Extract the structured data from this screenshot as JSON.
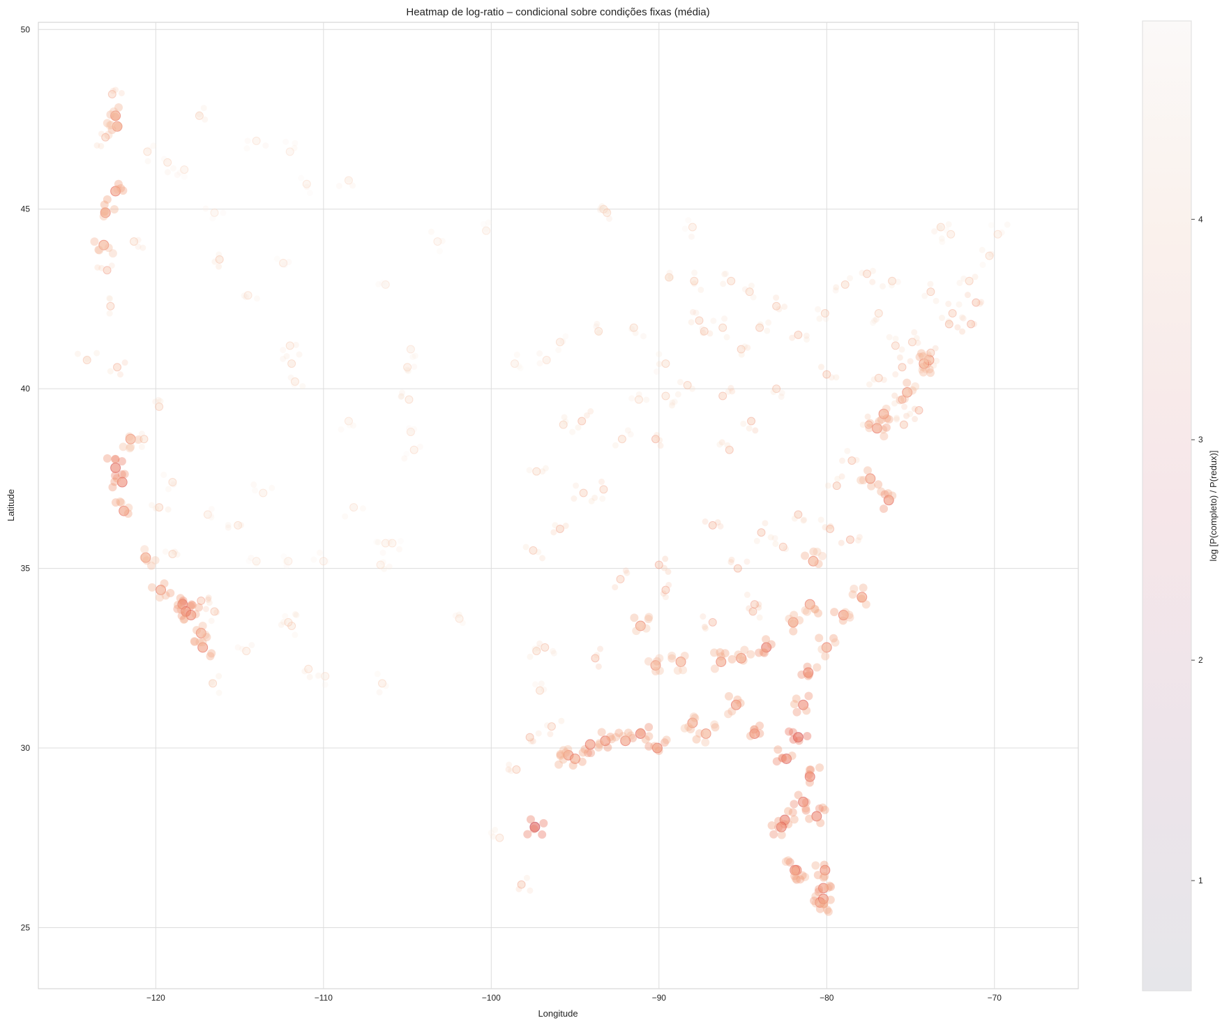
{
  "chart_data": {
    "type": "scatter",
    "title": "Heatmap de log-ratio – condicional sobre condições fixas (média)",
    "xlabel": "Longitude",
    "ylabel": "Latitude",
    "xlim": [
      -127.0,
      -65.0
    ],
    "ylim": [
      23.3,
      50.2
    ],
    "xticks": [
      -120,
      -110,
      -100,
      -90,
      -80,
      -70
    ],
    "xtick_labels": [
      "−120",
      "−110",
      "−100",
      "−90",
      "−80",
      "−70"
    ],
    "yticks": [
      25,
      30,
      35,
      40,
      45,
      50
    ],
    "ytick_labels": [
      "25",
      "30",
      "35",
      "40",
      "45",
      "50"
    ],
    "grid": true,
    "colorbar": {
      "label": "log [P(completo) / P(redux)]",
      "range": [
        0.5,
        4.9
      ],
      "ticks": [
        1,
        2,
        3,
        4
      ],
      "tick_labels": [
        "1",
        "2",
        "3",
        "4"
      ],
      "colormap": [
        "#2b2d42",
        "#6b2a55",
        "#b2304f",
        "#e4574a",
        "#f2a27f",
        "#f7d9c4",
        "#faf3ee"
      ]
    },
    "series": [
      {
        "description_points": "[lon, lat, log-ratio value]",
        "points": [
          [
            -122.4,
            47.6,
            3.4
          ],
          [
            -122.3,
            47.3,
            3.5
          ],
          [
            -122.6,
            48.2,
            3.8
          ],
          [
            -122.4,
            45.5,
            3.3
          ],
          [
            -123.0,
            44.9,
            3.4
          ],
          [
            -123.1,
            44.0,
            3.5
          ],
          [
            -122.9,
            43.3,
            3.6
          ],
          [
            -122.7,
            42.3,
            3.9
          ],
          [
            -122.3,
            40.6,
            3.8
          ],
          [
            -122.4,
            37.8,
            3.0
          ],
          [
            -122.0,
            37.4,
            3.1
          ],
          [
            -121.9,
            36.6,
            3.3
          ],
          [
            -121.5,
            38.6,
            3.5
          ],
          [
            -120.6,
            35.3,
            3.5
          ],
          [
            -119.7,
            34.4,
            3.4
          ],
          [
            -118.4,
            34.0,
            3.1
          ],
          [
            -118.2,
            33.8,
            3.2
          ],
          [
            -117.9,
            33.7,
            3.2
          ],
          [
            -117.2,
            32.8,
            3.3
          ],
          [
            -117.3,
            33.2,
            3.4
          ],
          [
            -119.8,
            36.7,
            4.0
          ],
          [
            -119.0,
            35.4,
            4.1
          ],
          [
            -117.3,
            34.1,
            3.6
          ],
          [
            -116.5,
            33.8,
            3.9
          ],
          [
            -119.8,
            39.5,
            4.0
          ],
          [
            -115.1,
            36.2,
            4.3
          ],
          [
            -111.9,
            33.4,
            4.2
          ],
          [
            -110.9,
            32.2,
            4.3
          ],
          [
            -106.6,
            35.1,
            4.5
          ],
          [
            -111.9,
            40.7,
            4.2
          ],
          [
            -104.9,
            39.7,
            4.3
          ],
          [
            -104.8,
            38.8,
            4.4
          ],
          [
            -116.2,
            43.6,
            4.0
          ],
          [
            -117.4,
            47.6,
            4.2
          ],
          [
            -112.0,
            46.6,
            4.6
          ],
          [
            -108.5,
            45.8,
            4.5
          ],
          [
            -96.8,
            32.8,
            3.9
          ],
          [
            -97.3,
            32.7,
            4.0
          ],
          [
            -95.4,
            29.8,
            3.3
          ],
          [
            -95.0,
            29.7,
            3.4
          ],
          [
            -98.5,
            29.4,
            3.9
          ],
          [
            -97.7,
            30.3,
            3.7
          ],
          [
            -97.5,
            35.5,
            3.9
          ],
          [
            -95.9,
            36.1,
            3.7
          ],
          [
            -94.6,
            39.1,
            3.8
          ],
          [
            -90.2,
            38.6,
            3.6
          ],
          [
            -93.3,
            45.0,
            4.2
          ],
          [
            -93.1,
            44.9,
            4.2
          ],
          [
            -87.6,
            41.9,
            3.9
          ],
          [
            -87.9,
            43.0,
            4.0
          ],
          [
            -83.0,
            42.3,
            3.9
          ],
          [
            -83.0,
            40.0,
            3.9
          ],
          [
            -84.5,
            39.1,
            3.7
          ],
          [
            -86.2,
            39.8,
            3.8
          ],
          [
            -84.4,
            33.8,
            3.7
          ],
          [
            -86.8,
            33.5,
            3.6
          ],
          [
            -86.8,
            36.2,
            3.6
          ],
          [
            -85.8,
            38.3,
            3.8
          ],
          [
            -90.1,
            30.0,
            3.2
          ],
          [
            -91.1,
            30.4,
            3.1
          ],
          [
            -93.8,
            32.5,
            3.6
          ],
          [
            -90.2,
            32.3,
            3.5
          ],
          [
            -88.0,
            30.7,
            3.4
          ],
          [
            -87.2,
            30.4,
            3.5
          ],
          [
            -84.3,
            30.4,
            3.2
          ],
          [
            -81.7,
            30.3,
            2.8
          ],
          [
            -82.5,
            28.0,
            3.0
          ],
          [
            -82.7,
            27.8,
            3.1
          ],
          [
            -81.4,
            28.5,
            3.1
          ],
          [
            -80.2,
            26.1,
            3.2
          ],
          [
            -80.1,
            26.6,
            3.2
          ],
          [
            -81.8,
            26.6,
            3.3
          ],
          [
            -80.8,
            35.2,
            3.5
          ],
          [
            -78.6,
            35.8,
            3.6
          ],
          [
            -80.0,
            32.8,
            3.4
          ],
          [
            -81.0,
            34.0,
            3.4
          ],
          [
            -77.4,
            37.5,
            3.4
          ],
          [
            -76.3,
            36.9,
            3.2
          ],
          [
            -77.0,
            38.9,
            3.3
          ],
          [
            -76.6,
            39.3,
            3.4
          ],
          [
            -75.2,
            39.9,
            3.5
          ],
          [
            -74.0,
            40.7,
            3.6
          ],
          [
            -73.9,
            40.8,
            3.5
          ],
          [
            -74.2,
            40.7,
            3.5
          ],
          [
            -71.1,
            42.4,
            3.6
          ],
          [
            -71.4,
            41.8,
            3.6
          ],
          [
            -72.7,
            41.8,
            3.7
          ],
          [
            -73.8,
            42.7,
            3.9
          ],
          [
            -76.1,
            43.0,
            4.0
          ],
          [
            -77.6,
            43.2,
            3.9
          ],
          [
            -78.9,
            42.9,
            4.0
          ],
          [
            -80.0,
            40.4,
            3.8
          ],
          [
            -81.7,
            41.5,
            3.8
          ],
          [
            -75.5,
            39.7,
            3.6
          ],
          [
            -76.9,
            40.3,
            3.9
          ],
          [
            -75.5,
            40.6,
            3.7
          ],
          [
            -79.8,
            36.1,
            3.7
          ],
          [
            -82.6,
            35.6,
            3.8
          ],
          [
            -85.3,
            35.0,
            3.7
          ],
          [
            -83.9,
            36.0,
            3.7
          ],
          [
            -90.0,
            35.1,
            3.6
          ],
          [
            -92.3,
            34.7,
            3.8
          ],
          [
            -97.1,
            31.6,
            4.1
          ],
          [
            -101.9,
            33.6,
            4.4
          ],
          [
            -106.5,
            31.8,
            4.3
          ],
          [
            -106.3,
            35.7,
            4.5
          ],
          [
            -105.9,
            35.7,
            4.5
          ],
          [
            -110.0,
            35.2,
            4.6
          ],
          [
            -112.1,
            35.2,
            4.6
          ],
          [
            -114.0,
            35.2,
            4.6
          ],
          [
            -116.6,
            31.8,
            4.1
          ],
          [
            -100.3,
            44.4,
            4.6
          ],
          [
            -96.7,
            40.8,
            4.4
          ],
          [
            -95.9,
            41.3,
            4.3
          ],
          [
            -93.6,
            41.6,
            4.2
          ],
          [
            -91.5,
            41.7,
            4.2
          ],
          [
            -89.4,
            43.1,
            4.1
          ],
          [
            -88.0,
            44.5,
            4.3
          ],
          [
            -84.6,
            42.7,
            4.0
          ],
          [
            -85.7,
            43.0,
            4.0
          ],
          [
            -86.2,
            41.7,
            4.0
          ],
          [
            -80.6,
            28.1,
            3.1
          ],
          [
            -81.0,
            29.2,
            3.1
          ],
          [
            -82.4,
            29.7,
            3.0
          ],
          [
            -81.9,
            26.6,
            3.2
          ],
          [
            -80.4,
            25.7,
            3.3
          ],
          [
            -80.2,
            25.8,
            3.2
          ],
          [
            -81.4,
            31.2,
            3.1
          ],
          [
            -83.6,
            32.8,
            3.0
          ],
          [
            -81.1,
            32.1,
            3.2
          ],
          [
            -79.0,
            33.7,
            3.3
          ],
          [
            -77.9,
            34.2,
            3.4
          ],
          [
            -96.4,
            30.6,
            3.9
          ],
          [
            -97.4,
            27.8,
            2.6
          ],
          [
            -98.2,
            26.2,
            3.7
          ],
          [
            -99.5,
            27.5,
            4.3
          ],
          [
            -94.1,
            30.1,
            3.2
          ],
          [
            -93.2,
            30.2,
            3.2
          ],
          [
            -92.0,
            30.2,
            3.3
          ],
          [
            -91.1,
            33.4,
            3.5
          ],
          [
            -89.6,
            34.4,
            3.6
          ],
          [
            -88.7,
            32.4,
            3.5
          ],
          [
            -84.3,
            34.0,
            3.6
          ],
          [
            -85.1,
            32.5,
            3.4
          ],
          [
            -85.4,
            31.2,
            3.3
          ],
          [
            -86.3,
            32.4,
            3.4
          ],
          [
            -82.0,
            33.5,
            3.4
          ],
          [
            -81.7,
            36.5,
            3.7
          ],
          [
            -79.4,
            37.3,
            3.7
          ],
          [
            -78.5,
            38.0,
            3.8
          ],
          [
            -77.5,
            39.0,
            3.6
          ],
          [
            -75.4,
            39.0,
            3.7
          ],
          [
            -74.5,
            39.4,
            3.6
          ],
          [
            -73.2,
            44.5,
            4.2
          ],
          [
            -72.6,
            44.3,
            4.3
          ],
          [
            -70.3,
            43.7,
            4.2
          ],
          [
            -69.8,
            44.3,
            4.4
          ],
          [
            -71.5,
            43.0,
            4.0
          ],
          [
            -72.5,
            42.1,
            3.8
          ],
          [
            -73.8,
            41.0,
            3.7
          ],
          [
            -74.9,
            41.3,
            3.9
          ],
          [
            -75.9,
            41.2,
            3.9
          ],
          [
            -76.9,
            42.1,
            4.1
          ],
          [
            -80.1,
            42.1,
            4.0
          ],
          [
            -84.0,
            41.7,
            3.9
          ],
          [
            -85.1,
            41.1,
            3.9
          ],
          [
            -87.3,
            41.6,
            3.9
          ],
          [
            -88.3,
            40.1,
            4.0
          ],
          [
            -89.6,
            39.8,
            4.1
          ],
          [
            -91.2,
            39.7,
            4.3
          ],
          [
            -89.6,
            40.7,
            4.1
          ],
          [
            -92.2,
            38.6,
            4.0
          ],
          [
            -93.3,
            37.2,
            3.9
          ],
          [
            -94.5,
            37.1,
            3.9
          ],
          [
            -95.7,
            39.0,
            4.1
          ],
          [
            -97.3,
            37.7,
            4.1
          ],
          [
            -98.6,
            40.7,
            4.5
          ],
          [
            -103.2,
            44.1,
            4.6
          ],
          [
            -104.8,
            41.1,
            4.5
          ],
          [
            -106.3,
            42.9,
            4.6
          ],
          [
            -111.0,
            45.7,
            4.5
          ],
          [
            -114.0,
            46.9,
            4.5
          ],
          [
            -119.3,
            46.3,
            4.3
          ],
          [
            -120.5,
            46.6,
            4.3
          ],
          [
            -123.0,
            47.0,
            3.7
          ],
          [
            -124.1,
            40.8,
            4.0
          ],
          [
            -121.3,
            44.1,
            4.1
          ],
          [
            -120.7,
            38.6,
            4.0
          ],
          [
            -119.0,
            37.4,
            4.2
          ],
          [
            -116.9,
            36.5,
            4.4
          ],
          [
            -114.6,
            32.7,
            4.3
          ],
          [
            -112.1,
            33.5,
            4.2
          ],
          [
            -109.9,
            32.0,
            4.5
          ],
          [
            -108.2,
            36.7,
            4.5
          ],
          [
            -105.0,
            40.6,
            4.3
          ],
          [
            -104.6,
            38.3,
            4.4
          ],
          [
            -108.5,
            39.1,
            4.5
          ],
          [
            -113.6,
            37.1,
            4.5
          ],
          [
            -111.7,
            40.2,
            4.3
          ],
          [
            -112.0,
            41.2,
            4.3
          ],
          [
            -114.5,
            42.6,
            4.4
          ],
          [
            -112.4,
            43.5,
            4.4
          ],
          [
            -116.5,
            44.9,
            4.6
          ],
          [
            -118.3,
            46.1,
            4.5
          ]
        ]
      }
    ]
  }
}
